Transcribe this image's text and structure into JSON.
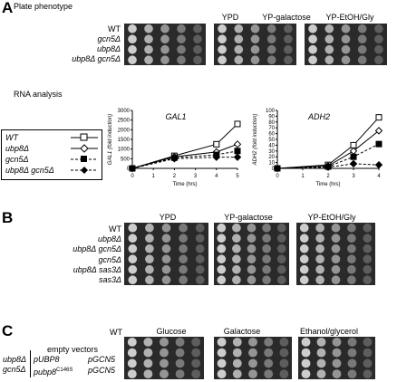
{
  "panelA": {
    "letter": "A",
    "title": "Plate phenotype",
    "columns": [
      "YPD",
      "YP-galactose",
      "YP-EtOH/Gly"
    ],
    "strains": [
      "WT",
      "gcn5Δ",
      "ubp8Δ",
      "ubp8Δ gcn5Δ"
    ],
    "rna_title": "RNA analysis",
    "legend": [
      {
        "label": "WT",
        "marker": "open-square",
        "line": "solid"
      },
      {
        "label": "ubp8Δ",
        "marker": "open-diamond",
        "line": "solid"
      },
      {
        "label": "gcn5Δ",
        "marker": "filled-square",
        "line": "dashed"
      },
      {
        "label": "ubp8Δ gcn5Δ",
        "marker": "filled-diamond",
        "line": "dashed"
      }
    ]
  },
  "panelB": {
    "letter": "B",
    "columns": [
      "YPD",
      "YP-galactose",
      "YP-EtOH/Gly"
    ],
    "strains": [
      "WT",
      "ubp8Δ",
      "ubp8Δ gcn5Δ",
      "gcn5Δ",
      "ubp8Δ sas3Δ",
      "sas3Δ"
    ]
  },
  "panelC": {
    "letter": "C",
    "columns": [
      "Glucose",
      "Galactose",
      "Ethanol/glycerol"
    ],
    "wt": "WT",
    "group_label_1": "ubp8Δ",
    "group_label_2": "gcn5Δ",
    "rows": [
      {
        "left": "",
        "right": "empty vectors"
      },
      {
        "left": "pUBP8",
        "right": "pGCN5"
      },
      {
        "left": "pubp8",
        "sup": "C146S",
        "right": "pGCN5"
      }
    ]
  },
  "chart_data": [
    {
      "type": "line",
      "title": "GAL1",
      "xlabel": "Time (hrs)",
      "ylabel": "GAL1 (fold induction)",
      "xlim": [
        0,
        5
      ],
      "ylim": [
        0,
        3000
      ],
      "xticks": [
        "0",
        "1",
        "2",
        "3",
        "4",
        "5"
      ],
      "yticks": [
        "0",
        "500",
        "1000",
        "1500",
        "2000",
        "2500",
        "3000"
      ],
      "x": [
        0,
        2,
        4,
        5
      ],
      "series": [
        {
          "name": "WT",
          "values": [
            0,
            650,
            1250,
            2300
          ]
        },
        {
          "name": "ubp8Δ",
          "values": [
            0,
            600,
            850,
            1250
          ]
        },
        {
          "name": "gcn5Δ",
          "values": [
            0,
            550,
            700,
            900
          ]
        },
        {
          "name": "ubp8Δ gcn5Δ",
          "values": [
            0,
            500,
            580,
            580
          ]
        }
      ]
    },
    {
      "type": "line",
      "title": "ADH2",
      "xlabel": "Time (hrs)",
      "ylabel": "ADH2 (fold induction)",
      "xlim": [
        0,
        4
      ],
      "ylim": [
        0,
        100
      ],
      "xticks": [
        "0",
        "1",
        "2",
        "3",
        "4"
      ],
      "yticks": [
        "0",
        "10",
        "20",
        "30",
        "40",
        "50",
        "60",
        "70",
        "80",
        "90",
        "100"
      ],
      "x": [
        0,
        2,
        3,
        4
      ],
      "series": [
        {
          "name": "WT",
          "values": [
            0,
            6,
            40,
            88
          ]
        },
        {
          "name": "ubp8Δ",
          "values": [
            0,
            4,
            30,
            65
          ]
        },
        {
          "name": "gcn5Δ",
          "values": [
            0,
            3,
            20,
            42
          ]
        },
        {
          "name": "ubp8Δ gcn5Δ",
          "values": [
            0,
            2,
            8,
            6
          ]
        }
      ]
    }
  ]
}
